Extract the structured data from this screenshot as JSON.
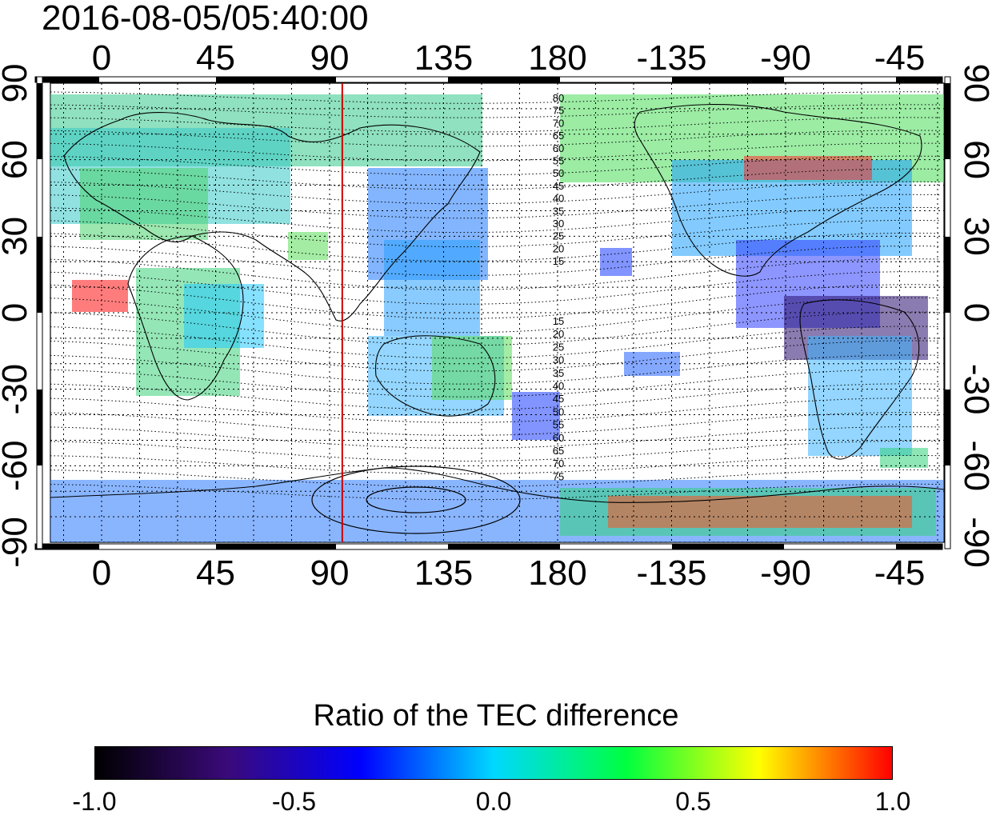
{
  "timestamp": "2016-08-05/05:40:00",
  "top_lon_labels": [
    "0",
    "45",
    "90",
    "135",
    "180",
    "-135",
    "-90",
    "-45"
  ],
  "bottom_lon_labels": [
    "0",
    "45",
    "90",
    "135",
    "180",
    "-135",
    "-90",
    "-45"
  ],
  "left_lat_labels": [
    "90",
    "60",
    "30",
    "0",
    "-30",
    "-60",
    "-90"
  ],
  "right_lat_labels": [
    "90",
    "60",
    "30",
    "0",
    "-30",
    "-60",
    "-90"
  ],
  "contour_labels_north": [
    "80",
    "75",
    "70",
    "65",
    "60",
    "55",
    "50",
    "45",
    "40",
    "35",
    "30",
    "25",
    "20",
    "15"
  ],
  "contour_labels_south": [
    "15",
    "20",
    "25",
    "30",
    "35",
    "40",
    "45",
    "50",
    "55",
    "60",
    "65",
    "70",
    "75"
  ],
  "terminator_longitude": 95,
  "colorbar": {
    "title": "Ratio of the TEC difference",
    "tick_labels": [
      "-1.0",
      "-0.5",
      "0.0",
      "0.5",
      "1.0"
    ],
    "colors": [
      "#000000",
      "#3a0a7a",
      "#0000ff",
      "#00d8ff",
      "#00ff40",
      "#ffff00",
      "#ff0000"
    ]
  },
  "colors": {
    "terminator": "#cc0000",
    "coast": "#000000",
    "grid": "#000000"
  }
}
